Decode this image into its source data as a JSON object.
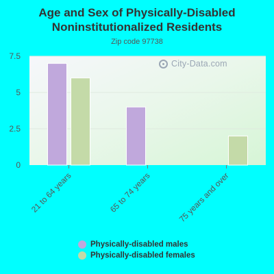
{
  "chart_data": {
    "type": "bar",
    "title": "Age and Sex of Physically-Disabled Noninstitutionalized Residents",
    "subtitle": "Zip code 97738",
    "categories": [
      "21 to 64 years",
      "65 to 74 years",
      "75 years and over"
    ],
    "series": [
      {
        "name": "Physically-disabled males",
        "color": "#C0A8DC",
        "values": [
          7,
          4,
          0
        ]
      },
      {
        "name": "Physically-disabled females",
        "color": "#C4DAA8",
        "values": [
          6,
          0,
          2
        ]
      }
    ],
    "yticks": [
      "0",
      "2.5",
      "5",
      "7.5"
    ],
    "ylim": [
      0,
      7.5
    ],
    "xlabel": "",
    "ylabel": "",
    "grid": true,
    "legend_position": "bottom"
  },
  "watermark": {
    "text": "City-Data.com",
    "icon": "city-data-logo-icon"
  }
}
